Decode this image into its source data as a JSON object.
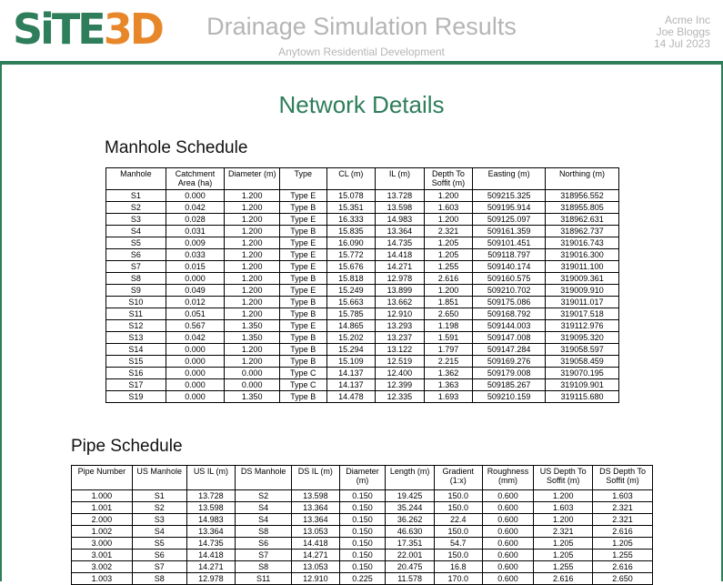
{
  "header": {
    "logo_part1": "SiTE",
    "logo_part2": "3D",
    "title": "Drainage Simulation Results",
    "subtitle": "Anytown Residential Development",
    "company": "Acme Inc",
    "author": "Joe Bloggs",
    "date": "14 Jul 2023"
  },
  "section_title": "Network Details",
  "colors": {
    "brand_green": "#2e7d5b",
    "brand_orange": "#e8872a",
    "header_gray": "#b5b5b5"
  },
  "manhole_schedule": {
    "title": "Manhole Schedule",
    "columns": [
      "Manhole",
      "Catchment\nArea (ha)",
      "Diameter (m)",
      "Type",
      "CL (m)",
      "IL (m)",
      "Depth To\nSoffit (m)",
      "Easting (m)",
      "Northing (m)"
    ],
    "rows": [
      [
        "S1",
        "0.000",
        "1.200",
        "Type E",
        "15.078",
        "13.728",
        "1.200",
        "509215.325",
        "318956.552"
      ],
      [
        "S2",
        "0.042",
        "1.200",
        "Type B",
        "15.351",
        "13.598",
        "1.603",
        "509195.914",
        "318955.805"
      ],
      [
        "S3",
        "0.028",
        "1.200",
        "Type E",
        "16.333",
        "14.983",
        "1.200",
        "509125.097",
        "318962.631"
      ],
      [
        "S4",
        "0.031",
        "1.200",
        "Type B",
        "15.835",
        "13.364",
        "2.321",
        "509161.359",
        "318962.737"
      ],
      [
        "S5",
        "0.009",
        "1.200",
        "Type E",
        "16.090",
        "14.735",
        "1.205",
        "509101.451",
        "319016.743"
      ],
      [
        "S6",
        "0.033",
        "1.200",
        "Type E",
        "15.772",
        "14.418",
        "1.205",
        "509118.797",
        "319016.300"
      ],
      [
        "S7",
        "0.015",
        "1.200",
        "Type E",
        "15.676",
        "14.271",
        "1.255",
        "509140.174",
        "319011.100"
      ],
      [
        "S8",
        "0.000",
        "1.200",
        "Type B",
        "15.818",
        "12.978",
        "2.616",
        "509160.575",
        "319009.361"
      ],
      [
        "S9",
        "0.049",
        "1.200",
        "Type E",
        "15.249",
        "13.899",
        "1.200",
        "509210.702",
        "319009.910"
      ],
      [
        "S10",
        "0.012",
        "1.200",
        "Type B",
        "15.663",
        "13.662",
        "1.851",
        "509175.086",
        "319011.017"
      ],
      [
        "S11",
        "0.051",
        "1.200",
        "Type B",
        "15.785",
        "12.910",
        "2.650",
        "509168.792",
        "319017.518"
      ],
      [
        "S12",
        "0.567",
        "1.350",
        "Type E",
        "14.865",
        "13.293",
        "1.198",
        "509144.003",
        "319112.976"
      ],
      [
        "S13",
        "0.042",
        "1.350",
        "Type B",
        "15.202",
        "13.237",
        "1.591",
        "509147.008",
        "319095.320"
      ],
      [
        "S14",
        "0.000",
        "1.200",
        "Type B",
        "15.294",
        "13.122",
        "1.797",
        "509147.284",
        "319058.597"
      ],
      [
        "S15",
        "0.000",
        "1.200",
        "Type B",
        "15.109",
        "12.519",
        "2.215",
        "509169.276",
        "319058.459"
      ],
      [
        "S16",
        "0.000",
        "0.000",
        "Type C",
        "14.137",
        "12.400",
        "1.362",
        "509179.008",
        "319070.195"
      ],
      [
        "S17",
        "0.000",
        "0.000",
        "Type C",
        "14.137",
        "12.399",
        "1.363",
        "509185.267",
        "319109.901"
      ],
      [
        "S19",
        "0.000",
        "1.350",
        "Type B",
        "14.478",
        "12.335",
        "1.693",
        "509210.159",
        "319115.680"
      ]
    ]
  },
  "pipe_schedule": {
    "title": "Pipe Schedule",
    "columns": [
      "Pipe Number",
      "US Manhole",
      "US IL (m)",
      "DS Manhole",
      "DS IL (m)",
      "Diameter\n(m)",
      "Length (m)",
      "Gradient\n(1:x)",
      "Roughness\n(mm)",
      "US Depth To\nSoffit (m)",
      "DS Depth To\nSoffit (m)"
    ],
    "rows": [
      [
        "1.000",
        "S1",
        "13.728",
        "S2",
        "13.598",
        "0.150",
        "19.425",
        "150.0",
        "0.600",
        "1.200",
        "1.603"
      ],
      [
        "1.001",
        "S2",
        "13.598",
        "S4",
        "13.364",
        "0.150",
        "35.244",
        "150.0",
        "0.600",
        "1.603",
        "2.321"
      ],
      [
        "2.000",
        "S3",
        "14.983",
        "S4",
        "13.364",
        "0.150",
        "36.262",
        "22.4",
        "0.600",
        "1.200",
        "2.321"
      ],
      [
        "1.002",
        "S4",
        "13.364",
        "S8",
        "13.053",
        "0.150",
        "46.630",
        "150.0",
        "0.600",
        "2.321",
        "2.616"
      ],
      [
        "3.000",
        "S5",
        "14.735",
        "S6",
        "14.418",
        "0.150",
        "17.351",
        "54.7",
        "0.600",
        "1.205",
        "1.205"
      ],
      [
        "3.001",
        "S6",
        "14.418",
        "S7",
        "14.271",
        "0.150",
        "22.001",
        "150.0",
        "0.600",
        "1.205",
        "1.255"
      ],
      [
        "3.002",
        "S7",
        "14.271",
        "S8",
        "13.053",
        "0.150",
        "20.475",
        "16.8",
        "0.600",
        "1.255",
        "2.616"
      ],
      [
        "1.003",
        "S8",
        "12.978",
        "S11",
        "12.910",
        "0.225",
        "11.578",
        "170.0",
        "0.600",
        "2.616",
        "2.650"
      ]
    ]
  }
}
